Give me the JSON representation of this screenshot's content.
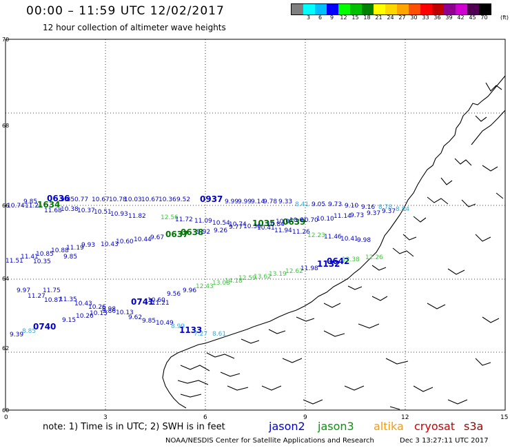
{
  "header": {
    "title": "00:00 – 11:59 UTC 12/02/2017",
    "subtitle": "12 hour collection of altimeter wave heights"
  },
  "colorbar": {
    "colors": [
      "#7f7f7f",
      "#00ffff",
      "#00bfff",
      "#0000ff",
      "#00ff00",
      "#00c000",
      "#008000",
      "#ffff00",
      "#ffd700",
      "#ffa500",
      "#ff5000",
      "#ff0000",
      "#c00000",
      "#900090",
      "#d000d0",
      "#500050",
      "#000000"
    ],
    "labels": [
      "3",
      "6",
      "9",
      "12",
      "15",
      "18",
      "21",
      "24",
      "27",
      "30",
      "33",
      "36",
      "39",
      "42",
      "45",
      "70"
    ],
    "unit": "(ft)"
  },
  "axes": {
    "y_ticks": [
      "70",
      "68",
      "66",
      "64",
      "62",
      "60"
    ],
    "x_ticks": [
      "0",
      "3",
      "6",
      "9",
      "12",
      "15"
    ]
  },
  "tracks": {
    "colors": {
      "jason2": "#0000cc",
      "jason3": "#007700",
      "jason3_light": "#33cc33",
      "cyan": "#33aadd"
    },
    "labels": [
      {
        "text": "9.85",
        "c": "#0000cc"
      },
      {
        "text": "0636",
        "c": "#0000cc"
      },
      {
        "text": "9.85",
        "c": "#0000cc"
      },
      {
        "text": "0.77",
        "c": "#0000cc"
      },
      {
        "text": "10.67",
        "c": "#0000cc"
      },
      {
        "text": "10.78",
        "c": "#0000cc"
      },
      {
        "text": "10.03",
        "c": "#0000cc"
      },
      {
        "text": "10.67",
        "c": "#0000cc"
      },
      {
        "text": "10.36",
        "c": "#0000cc"
      },
      {
        "text": "9.52",
        "c": "#0000cc"
      },
      {
        "text": "9.99",
        "c": "#0000cc"
      },
      {
        "text": "0937",
        "c": "#0000cc"
      },
      {
        "text": "9.99",
        "c": "#0000cc"
      },
      {
        "text": "9.14",
        "c": "#0000cc"
      },
      {
        "text": "9.78",
        "c": "#0000cc"
      },
      {
        "text": "9.33",
        "c": "#0000cc"
      },
      {
        "text": "8.41",
        "c": "#33aadd"
      },
      {
        "text": "9.05",
        "c": "#0000cc"
      },
      {
        "text": "9.73",
        "c": "#0000cc"
      },
      {
        "text": "9.10",
        "c": "#0000cc"
      },
      {
        "text": "9.16",
        "c": "#0000cc"
      },
      {
        "text": "8.78",
        "c": "#33aadd"
      },
      {
        "text": "8.84",
        "c": "#33aadd"
      },
      {
        "text": "10.74",
        "c": "#0000cc"
      },
      {
        "text": "11.21",
        "c": "#0000cc"
      },
      {
        "text": "1634",
        "c": "#007700"
      },
      {
        "text": "11.68",
        "c": "#0000cc"
      },
      {
        "text": "10.38",
        "c": "#0000cc"
      },
      {
        "text": "10.37",
        "c": "#0000cc"
      },
      {
        "text": "10.51",
        "c": "#0000cc"
      },
      {
        "text": "10.93",
        "c": "#0000cc"
      },
      {
        "text": "11.82",
        "c": "#0000cc"
      },
      {
        "text": "12.56",
        "c": "#33cc33"
      },
      {
        "text": "11.72",
        "c": "#0000cc"
      },
      {
        "text": "11.09",
        "c": "#0000cc"
      },
      {
        "text": "10.54",
        "c": "#0000cc"
      },
      {
        "text": "10.74",
        "c": "#0000cc"
      },
      {
        "text": "1035",
        "c": "#007700"
      },
      {
        "text": "10.84",
        "c": "#0000cc"
      },
      {
        "text": "0639",
        "c": "#007700"
      },
      {
        "text": "10.70",
        "c": "#0000cc"
      },
      {
        "text": "10.10",
        "c": "#0000cc"
      },
      {
        "text": "11.14",
        "c": "#0000cc"
      },
      {
        "text": "9.73",
        "c": "#0000cc"
      },
      {
        "text": "9.37",
        "c": "#0000cc"
      },
      {
        "text": "9.37",
        "c": "#0000cc"
      },
      {
        "text": "9.92",
        "c": "#0000cc"
      },
      {
        "text": "9.26",
        "c": "#0000cc"
      },
      {
        "text": "9.77",
        "c": "#0000cc"
      },
      {
        "text": "10.36",
        "c": "#0000cc"
      },
      {
        "text": "10.41",
        "c": "#0000cc"
      },
      {
        "text": "11.94",
        "c": "#0000cc"
      },
      {
        "text": "11.26",
        "c": "#0000cc"
      },
      {
        "text": "12.23",
        "c": "#33cc33"
      },
      {
        "text": "11.46",
        "c": "#0000cc"
      },
      {
        "text": "10.41",
        "c": "#0000cc"
      },
      {
        "text": "9.98",
        "c": "#0000cc"
      },
      {
        "text": "10.0",
        "c": "#0000cc"
      },
      {
        "text": "10.61",
        "c": "#0000cc"
      },
      {
        "text": "11.51",
        "c": "#0000cc"
      },
      {
        "text": "11.41",
        "c": "#0000cc"
      },
      {
        "text": "10.85",
        "c": "#0000cc"
      },
      {
        "text": "10.88",
        "c": "#0000cc"
      },
      {
        "text": "11.19",
        "c": "#0000cc"
      },
      {
        "text": "9.93",
        "c": "#0000cc"
      },
      {
        "text": "10.43",
        "c": "#0000cc"
      },
      {
        "text": "10.60",
        "c": "#0000cc"
      },
      {
        "text": "10.44",
        "c": "#0000cc"
      },
      {
        "text": "9.67",
        "c": "#0000cc"
      },
      {
        "text": "0637",
        "c": "#007700"
      },
      {
        "text": "0638",
        "c": "#007700"
      },
      {
        "text": "10.35",
        "c": "#0000cc"
      },
      {
        "text": "9.85",
        "c": "#0000cc"
      },
      {
        "text": "0642",
        "c": "#0000cc"
      },
      {
        "text": "12.38",
        "c": "#33cc33"
      },
      {
        "text": "12.26",
        "c": "#33cc33"
      },
      {
        "text": "12.43",
        "c": "#33cc33"
      },
      {
        "text": "13.08",
        "c": "#33cc33"
      },
      {
        "text": "14.18",
        "c": "#33cc33"
      },
      {
        "text": "12.59",
        "c": "#33cc33"
      },
      {
        "text": "13.62",
        "c": "#33cc33"
      },
      {
        "text": "13.19",
        "c": "#33cc33"
      },
      {
        "text": "12.62",
        "c": "#33cc33"
      },
      {
        "text": "11.98",
        "c": "#0000cc"
      },
      {
        "text": "1132",
        "c": "#0000cc"
      },
      {
        "text": "9.97",
        "c": "#0000cc"
      },
      {
        "text": "11.75",
        "c": "#0000cc"
      },
      {
        "text": "11.27",
        "c": "#0000cc"
      },
      {
        "text": "10.87",
        "c": "#0000cc"
      },
      {
        "text": "11.35",
        "c": "#0000cc"
      },
      {
        "text": "10.43",
        "c": "#0000cc"
      },
      {
        "text": "10.26",
        "c": "#0000cc"
      },
      {
        "text": "9.98",
        "c": "#0000cc"
      },
      {
        "text": "10.13",
        "c": "#0000cc"
      },
      {
        "text": "0741",
        "c": "#0000cc"
      },
      {
        "text": "10.60",
        "c": "#0000cc"
      },
      {
        "text": "11.21",
        "c": "#0000cc"
      },
      {
        "text": "9.56",
        "c": "#0000cc"
      },
      {
        "text": "9.96",
        "c": "#0000cc"
      },
      {
        "text": "9.15",
        "c": "#0000cc"
      },
      {
        "text": "10.26",
        "c": "#0000cc"
      },
      {
        "text": "10.13",
        "c": "#0000cc"
      },
      {
        "text": "9.86",
        "c": "#0000cc"
      },
      {
        "text": "9.62",
        "c": "#0000cc"
      },
      {
        "text": "9.85",
        "c": "#0000cc"
      },
      {
        "text": "10.49",
        "c": "#0000cc"
      },
      {
        "text": "8.99",
        "c": "#33aadd"
      },
      {
        "text": "1133",
        "c": "#0000cc"
      },
      {
        "text": "7.27",
        "c": "#33aadd"
      },
      {
        "text": "8.61",
        "c": "#33aadd"
      },
      {
        "text": "9.39",
        "c": "#0000cc"
      },
      {
        "text": "8.85",
        "c": "#33aadd"
      },
      {
        "text": "0740",
        "c": "#0000cc"
      }
    ]
  },
  "footer": {
    "note": "note: 1) Time is in UTC; 2) SWH is in feet",
    "legend": [
      {
        "name": "jason2",
        "color": "#0000cc"
      },
      {
        "name": "jason3",
        "color": "#009900"
      },
      {
        "name": "altika",
        "color": "#ff9900"
      },
      {
        "name": "cryosat",
        "color": "#cc0000"
      },
      {
        "name": "s3a",
        "color": "#990000"
      }
    ],
    "credit": "NOAA/NESDIS Center for Satellite Applications and Research",
    "date": "Dec  3 13:27:11 UTC 2017"
  }
}
